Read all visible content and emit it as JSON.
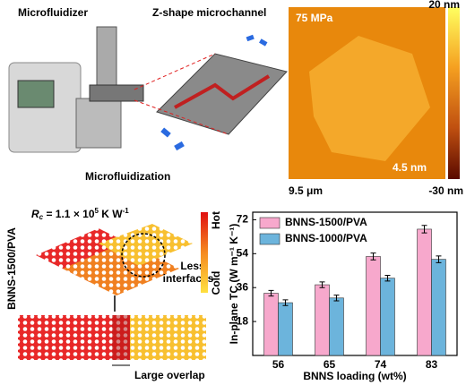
{
  "panel_a": {
    "label_left": "Microfluidizer",
    "label_right": "Z-shape microchannel",
    "label_bottom": "Microfluidization"
  },
  "panel_b": {
    "pressure": "75 MPa",
    "scale_max": "20 nm",
    "scale_min": "-30 nm",
    "height": "4.5 nm",
    "size": "9.5 μm"
  },
  "panel_c": {
    "rc": {
      "symbol": "R",
      "subscript": "c",
      "text": " = 1.1 × 10",
      "exp": "5",
      "unit": " K W",
      "unit_exp": "-1"
    },
    "sample": "BNNS-1500/PVA",
    "hot": "Hot",
    "cold": "Cold",
    "note_interfaces_1": "Less",
    "note_interfaces_2": "interfaces",
    "note_overlap": "Large overlap"
  },
  "chart_data": {
    "type": "bar",
    "xlabel": "BNNS loading (wt%)",
    "ylabel": "In-plane TC (W m⁻¹ K⁻¹)",
    "categories": [
      "56",
      "65",
      "74",
      "83"
    ],
    "series": [
      {
        "name": "BNNS-1500/PVA",
        "color": "#f7a8cc",
        "values": [
          33,
          37.5,
          52.5,
          67
        ],
        "errors": [
          1.5,
          1.5,
          1.8,
          2
        ]
      },
      {
        "name": "BNNS-1000/PVA",
        "color": "#6cb4dc",
        "values": [
          28,
          30.5,
          41,
          51
        ],
        "errors": [
          1.5,
          1.5,
          1.5,
          1.8
        ]
      }
    ],
    "ylim": [
      0,
      76
    ],
    "yticks": [
      18,
      36,
      54,
      72
    ],
    "legend": "upper left"
  }
}
